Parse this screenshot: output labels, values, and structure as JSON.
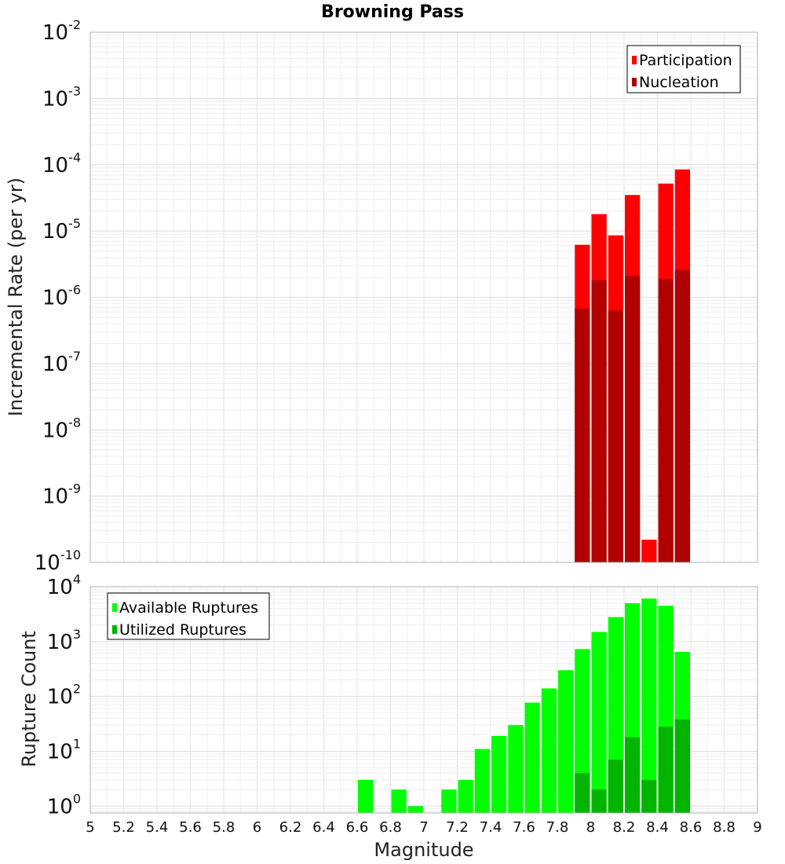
{
  "chart_data": [
    {
      "type": "bar",
      "title": "Browning Pass",
      "xlabel": "Magnitude",
      "ylabel": "Incremental Rate (per yr)",
      "yscale": "log",
      "xlim": [
        5,
        9
      ],
      "ylim": [
        1e-10,
        0.01
      ],
      "x_ticks": [
        "5",
        "5.2",
        "5.4",
        "5.6",
        "5.8",
        "6",
        "6.2",
        "6.4",
        "6.6",
        "6.8",
        "7",
        "7.2",
        "7.4",
        "7.6",
        "7.8",
        "8",
        "8.2",
        "8.4",
        "8.6",
        "8.8",
        "9"
      ],
      "y_tick_exponents": [
        "-10",
        "-9",
        "-8",
        "-7",
        "-6",
        "-5",
        "-4",
        "-3",
        "-2"
      ],
      "legend_location": "top-right",
      "series": [
        {
          "name": "Participation",
          "color": "#ff0000",
          "x": [
            7.95,
            8.05,
            8.15,
            8.25,
            8.35,
            8.45,
            8.55
          ],
          "values": [
            6.2e-06,
            1.8e-05,
            8.6e-06,
            3.5e-05,
            2.2e-10,
            5.2e-05,
            8.5e-05
          ]
        },
        {
          "name": "Nucleation",
          "color": "#b00000",
          "x": [
            7.95,
            8.05,
            8.15,
            8.25,
            8.35,
            8.45,
            8.55
          ],
          "values": [
            6.7e-07,
            1.8e-06,
            6.3e-07,
            2.1e-06,
            1e-10,
            1.9e-06,
            2.6e-06
          ]
        }
      ]
    },
    {
      "type": "bar",
      "title": "",
      "xlabel": "Magnitude",
      "ylabel": "Rupture Count",
      "yscale": "log",
      "xlim": [
        5,
        9
      ],
      "ylim": [
        0.75,
        10000
      ],
      "y_tick_exponents": [
        "0",
        "1",
        "2",
        "3",
        "4"
      ],
      "legend_location": "top-left",
      "series": [
        {
          "name": "Available Ruptures",
          "color": "#00ff00",
          "x": [
            6.65,
            6.85,
            6.95,
            7.15,
            7.25,
            7.35,
            7.45,
            7.55,
            7.65,
            7.75,
            7.85,
            7.95,
            8.05,
            8.15,
            8.25,
            8.35,
            8.45,
            8.55
          ],
          "values": [
            3,
            2,
            1,
            2,
            3,
            11,
            19,
            30,
            77,
            140,
            300,
            730,
            1500,
            2800,
            5000,
            6100,
            4500,
            650
          ]
        },
        {
          "name": "Utilized Ruptures",
          "color": "#00b400",
          "x": [
            7.95,
            8.05,
            8.15,
            8.25,
            8.35,
            8.45,
            8.55
          ],
          "values": [
            4,
            2,
            7,
            18,
            3,
            28,
            38
          ]
        }
      ]
    }
  ]
}
